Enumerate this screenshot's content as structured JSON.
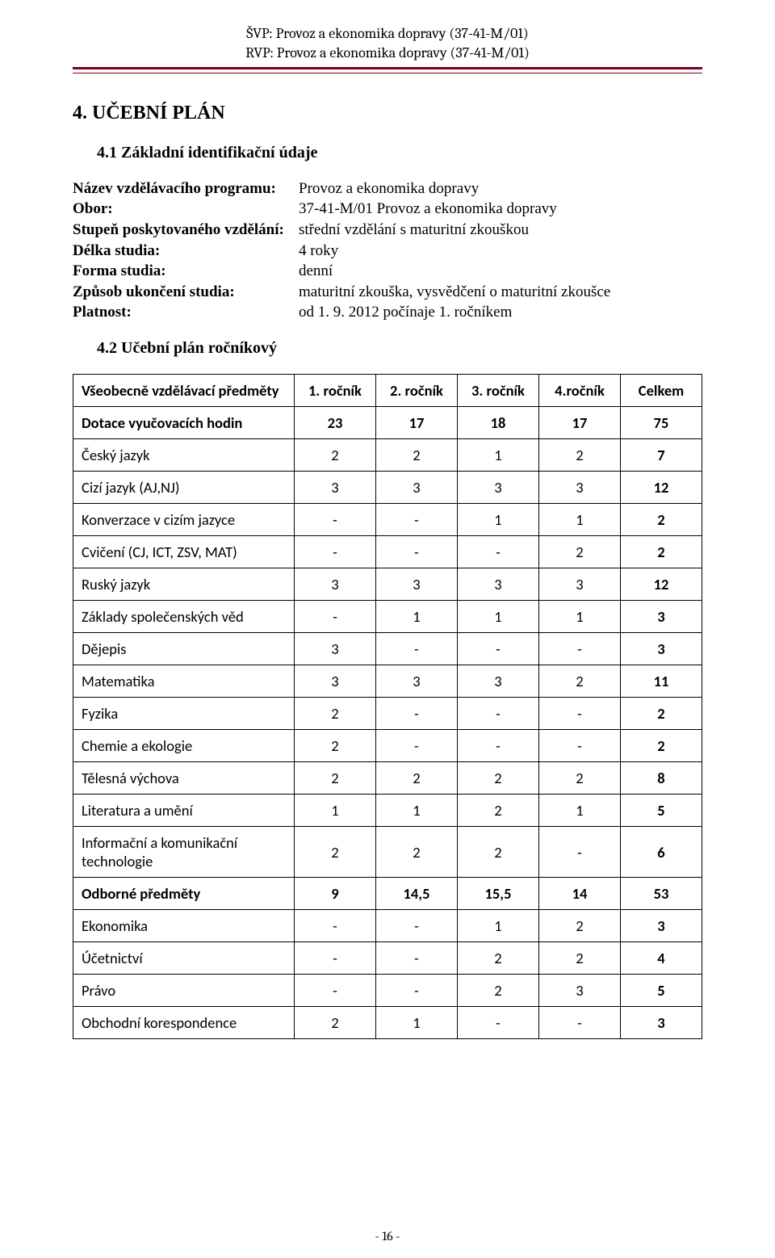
{
  "header": {
    "line1": "ŠVP: Provoz a ekonomika dopravy (37-41-M/01)",
    "line2": "RVP: Provoz a ekonomika dopravy (37-41-M/01)",
    "underline_color": "#7b001c"
  },
  "section": {
    "number_title": "4. UČEBNÍ PLÁN",
    "sub1_title": "4.1 Základní identifikační údaje",
    "sub2_title": "4.2 Učební plán ročníkový"
  },
  "meta": {
    "rows": [
      {
        "label": "Název vzdělávacího programu:",
        "value": "Provoz a ekonomika dopravy"
      },
      {
        "label": "Obor:",
        "value": "37-41-M/01 Provoz a ekonomika dopravy"
      },
      {
        "label": "Stupeň poskytovaného vzdělání:",
        "value": "střední vzdělání s maturitní zkouškou"
      },
      {
        "label": "Délka studia:",
        "value": "4 roky"
      },
      {
        "label": "Forma studia:",
        "value": "denní"
      },
      {
        "label": "Způsob ukončení studia:",
        "value": "maturitní zkouška, vysvědčení o maturitní zkoušce"
      },
      {
        "label": "Platnost:",
        "value": "od 1. 9. 2012 počínaje 1. ročníkem"
      }
    ]
  },
  "table": {
    "columns": [
      "Všeobecně vzdělávací předměty",
      "1. ročník",
      "2. ročník",
      "3. ročník",
      "4.ročník",
      "Celkem"
    ],
    "rows": [
      {
        "bold": true,
        "cells": [
          "Dotace vyučovacích hodin",
          "23",
          "17",
          "18",
          "17",
          "75"
        ]
      },
      {
        "bold": false,
        "cells": [
          "Český jazyk",
          "2",
          "2",
          "1",
          "2",
          "7"
        ]
      },
      {
        "bold": false,
        "cells": [
          "Cizí jazyk (AJ,NJ)",
          "3",
          "3",
          "3",
          "3",
          "12"
        ]
      },
      {
        "bold": false,
        "cells": [
          "Konverzace v cizím jazyce",
          "-",
          "-",
          "1",
          "1",
          "2"
        ]
      },
      {
        "bold": false,
        "cells": [
          "Cvičení (CJ, ICT, ZSV, MAT)",
          "-",
          "-",
          "-",
          "2",
          "2"
        ]
      },
      {
        "bold": false,
        "cells": [
          "Ruský jazyk",
          "3",
          "3",
          "3",
          "3",
          "12"
        ]
      },
      {
        "bold": false,
        "cells": [
          "Základy společenských věd",
          "-",
          "1",
          "1",
          "1",
          "3"
        ]
      },
      {
        "bold": false,
        "cells": [
          "Dějepis",
          "3",
          "-",
          "-",
          "-",
          "3"
        ]
      },
      {
        "bold": false,
        "cells": [
          "Matematika",
          "3",
          "3",
          "3",
          "2",
          "11"
        ]
      },
      {
        "bold": false,
        "cells": [
          "Fyzika",
          "2",
          "-",
          "-",
          "-",
          "2"
        ]
      },
      {
        "bold": false,
        "cells": [
          "Chemie a ekologie",
          "2",
          "-",
          "-",
          "-",
          "2"
        ]
      },
      {
        "bold": false,
        "cells": [
          "Tělesná výchova",
          "2",
          "2",
          "2",
          "2",
          "8"
        ]
      },
      {
        "bold": false,
        "cells": [
          "Literatura a umění",
          "1",
          "1",
          "2",
          "1",
          "5"
        ]
      },
      {
        "bold": false,
        "cells": [
          "Informační a komunikační technologie",
          "2",
          "2",
          "2",
          "-",
          "6"
        ]
      },
      {
        "bold": true,
        "cells": [
          "Odborné předměty",
          "9",
          "14,5",
          "15,5",
          "14",
          "53"
        ]
      },
      {
        "bold": false,
        "cells": [
          "Ekonomika",
          "-",
          "-",
          "1",
          "2",
          "3"
        ]
      },
      {
        "bold": false,
        "cells": [
          "Účetnictví",
          "-",
          "-",
          "2",
          "2",
          "4"
        ]
      },
      {
        "bold": false,
        "cells": [
          "Právo",
          "-",
          "-",
          "2",
          "3",
          "5"
        ]
      },
      {
        "bold": false,
        "cells": [
          "Obchodní korespondence",
          "2",
          "1",
          "-",
          "-",
          "3"
        ]
      }
    ],
    "col_widths": {
      "subject": "auto",
      "year": 80,
      "total": 80
    },
    "font_family": "Calibri",
    "font_size_pt": 14
  },
  "page_number": "- 16 -"
}
